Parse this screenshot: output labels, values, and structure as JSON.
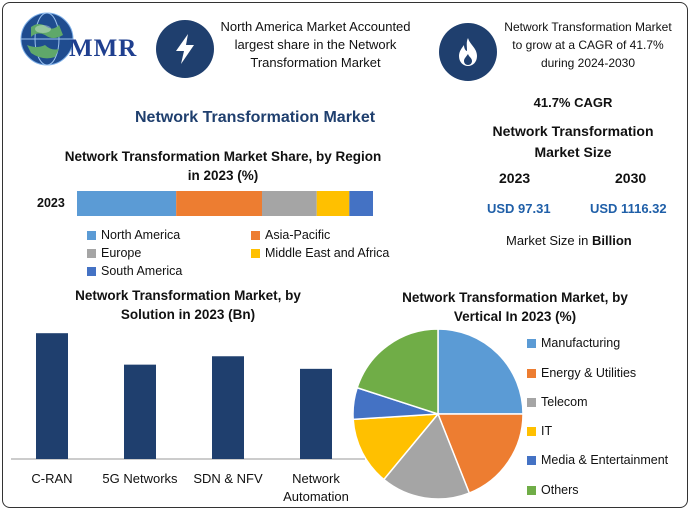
{
  "brand": {
    "logo_text": "MMR",
    "logo_icon": "globe-icon"
  },
  "header": {
    "fact1_icon": "lightning-icon",
    "fact1_text": "North America Market Accounted largest share in the Network Transformation Market",
    "fact2_icon": "flame-icon",
    "fact2_text": "Network Transformation Market to grow at a CAGR of 41.7% during 2024-2030"
  },
  "main_title": "Network Transformation Market",
  "stats": {
    "cagr": "41.7% CAGR",
    "size_title": "Network Transformation Market Size",
    "year_a": "2023",
    "year_b": "2030",
    "value_a": "USD 97.31",
    "value_b": "USD 1116.32",
    "unit_prefix": "Market Size in ",
    "unit_bold": "Billion"
  },
  "colors": {
    "north_america": "#5b9bd5",
    "asia_pacific": "#ed7d31",
    "europe": "#a5a5a5",
    "mea": "#ffc000",
    "south_america": "#4472c4",
    "bar": "#1f3f6e",
    "others": "#70ad47",
    "accent_navy": "#1f3f6e"
  },
  "chart_data": [
    {
      "type": "bar",
      "orientation": "horizontal-stacked",
      "title": "Network Transformation Market Share, by Region in 2023 (%)",
      "categories": [
        "2023"
      ],
      "series": [
        {
          "name": "North America",
          "values": [
            33.5
          ]
        },
        {
          "name": "Asia-Pacific",
          "values": [
            29
          ]
        },
        {
          "name": "Europe",
          "values": [
            18.5
          ]
        },
        {
          "name": "Middle East and Africa",
          "values": [
            11
          ]
        },
        {
          "name": "South America",
          "values": [
            8
          ]
        }
      ],
      "xlim": [
        0,
        100
      ],
      "legend": "bottom"
    },
    {
      "type": "bar",
      "title": "Network Transformation Market, by Solution in 2023 (Bn)",
      "categories": [
        "C-RAN",
        "5G Networks",
        "SDN & NFV",
        "Network Automation"
      ],
      "values": [
        30,
        22.5,
        24.5,
        21.5
      ],
      "ylim": [
        0,
        31
      ]
    },
    {
      "type": "pie",
      "title": "Network Transformation Market, by Vertical In 2023 (%)",
      "labels": [
        "Manufacturing",
        "Energy & Utilities",
        "Telecom",
        "IT",
        "Media & Entertainment",
        "Others"
      ],
      "values": [
        25,
        19,
        17,
        13,
        6,
        20
      ],
      "legend": "right"
    }
  ]
}
